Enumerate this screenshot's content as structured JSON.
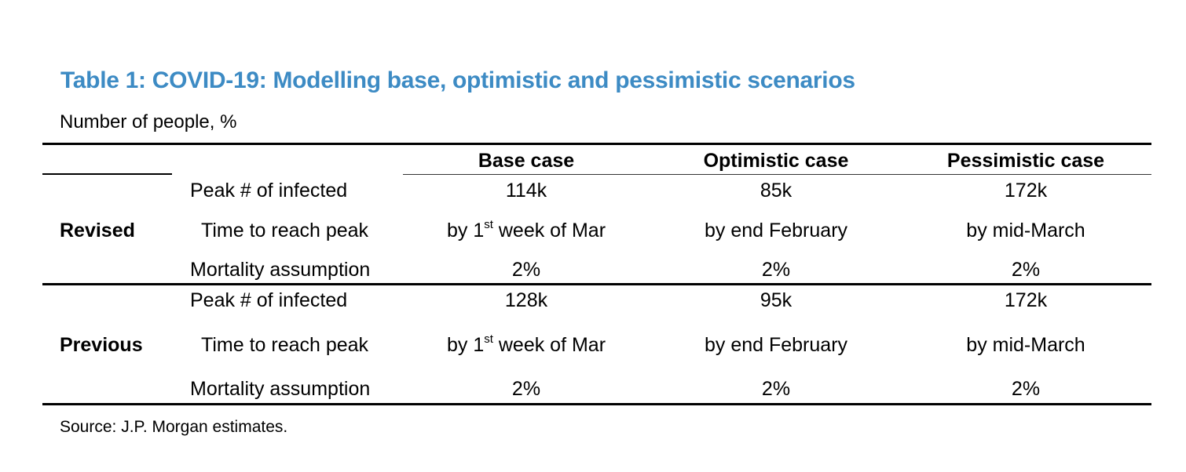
{
  "title": "Table 1: COVID-19: Modelling base, optimistic and pessimistic scenarios",
  "subtitle": "Number of people, %",
  "headers": [
    "Base case",
    "Optimistic case",
    "Pessimistic case"
  ],
  "groups": [
    {
      "label": "Revised",
      "rows": [
        {
          "metric": "Peak # of infected",
          "values": [
            "114k",
            "85k",
            "172k"
          ]
        },
        {
          "metric": "Time to reach peak",
          "values": [
            [
              "by 1",
              "st",
              " week of Mar"
            ],
            "by end February",
            "by mid-March"
          ]
        },
        {
          "metric": "Mortality assumption",
          "values": [
            "2%",
            "2%",
            "2%"
          ]
        }
      ]
    },
    {
      "label": "Previous",
      "rows": [
        {
          "metric": "Peak # of infected",
          "values": [
            "128k",
            "95k",
            "172k"
          ]
        },
        {
          "metric": "Time to reach peak",
          "values": [
            [
              "by 1",
              "st",
              " week of Mar"
            ],
            "by end February",
            "by mid-March"
          ]
        },
        {
          "metric": "Mortality assumption",
          "values": [
            "2%",
            "2%",
            "2%"
          ]
        }
      ]
    }
  ],
  "source": "Source: J.P. Morgan estimates."
}
